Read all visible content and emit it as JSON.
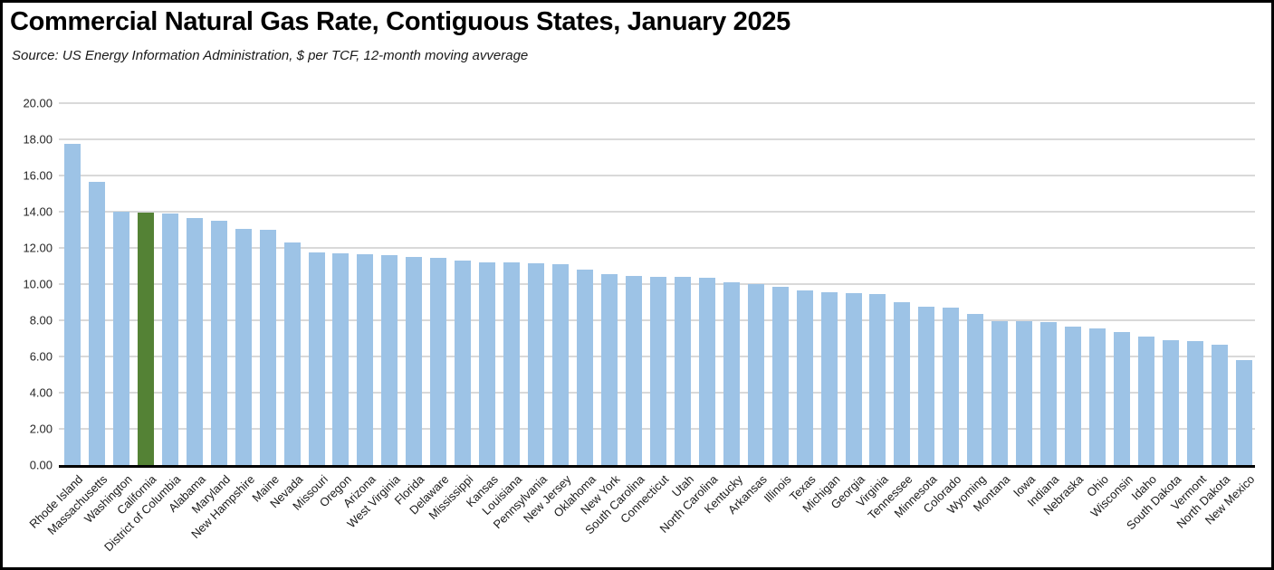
{
  "header": {
    "title": "Commercial Natural Gas Rate, Contiguous States, January 2025",
    "source": "Source:  US Energy Information Administration, $ per TCF, 12-month moving avverage"
  },
  "colors": {
    "bar": "#9DC3E6",
    "highlight": "#548235",
    "gridline": "#D9D9D9",
    "axis": "#000000"
  },
  "chart_data": {
    "type": "bar",
    "title": "Commercial Natural Gas Rate, Contiguous States, January 2025",
    "subtitle": "Source:  US Energy Information Administration, $ per TCF, 12-month moving avverage",
    "xlabel": "",
    "ylabel": "$ per TCF",
    "ylim": [
      0,
      20
    ],
    "ytick_step": 2,
    "y_tick_labels": [
      "0.00",
      "2.00",
      "4.00",
      "6.00",
      "8.00",
      "10.00",
      "12.00",
      "14.00",
      "16.00",
      "18.00",
      "20.00"
    ],
    "grid": true,
    "legend": "none",
    "bar_color": "#9DC3E6",
    "highlight_color": "#548235",
    "highlighted_category": "California",
    "categories": [
      "Rhode Island",
      "Massachusetts",
      "Washington",
      "California",
      "District of Columbia",
      "Alabama",
      "Maryland",
      "New Hampshire",
      "Maine",
      "Nevada",
      "Missouri",
      "Oregon",
      "Arizona",
      "West Virginia",
      "Florida",
      "Delaware",
      "Mississippi",
      "Kansas",
      "Louisiana",
      "Pennsylvania",
      "New Jersey",
      "Oklahoma",
      "New York",
      "South Carolina",
      "Connecticut",
      "Utah",
      "North Carolina",
      "Kentucky",
      "Arkansas",
      "Illinois",
      "Texas",
      "Michigan",
      "Georgia",
      "Virginia",
      "Tennessee",
      "Minnesota",
      "Colorado",
      "Wyoming",
      "Montana",
      "Iowa",
      "Indiana",
      "Nebraska",
      "Ohio",
      "Wisconsin",
      "Idaho",
      "South Dakota",
      "Vermont",
      "North Dakota",
      "New Mexico"
    ],
    "values": [
      17.75,
      15.65,
      14.0,
      13.95,
      13.9,
      13.65,
      13.5,
      13.05,
      13.0,
      12.3,
      11.75,
      11.7,
      11.65,
      11.6,
      11.5,
      11.45,
      11.3,
      11.2,
      11.2,
      11.15,
      11.1,
      10.8,
      10.55,
      10.45,
      10.4,
      10.4,
      10.35,
      10.1,
      10.0,
      9.85,
      9.65,
      9.55,
      9.5,
      9.45,
      9.0,
      8.75,
      8.7,
      8.35,
      7.95,
      7.95,
      7.9,
      7.65,
      7.55,
      7.35,
      7.1,
      6.9,
      6.85,
      6.65,
      5.8
    ]
  }
}
